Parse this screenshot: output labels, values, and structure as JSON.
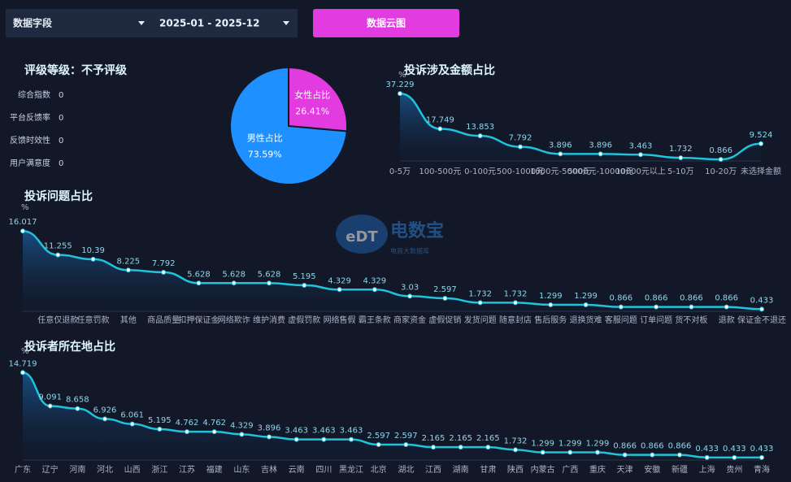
{
  "controls": {
    "field_select": "数据字段",
    "date_range": "2025-01 - 2025-12",
    "button": "数据云图"
  },
  "rating": {
    "title": "评级等级：不予评级",
    "items": [
      {
        "label": "综合指数",
        "value": 0
      },
      {
        "label": "平台反馈率",
        "value": 0
      },
      {
        "label": "反馈时效性",
        "value": 0
      },
      {
        "label": "用户满意度",
        "value": 0
      }
    ]
  },
  "watermark": {
    "name": "电数宝",
    "subtitle": "电商大数据库"
  },
  "chart_data": [
    {
      "type": "pie",
      "categories": [
        "男性占比",
        "女性占比"
      ],
      "values": [
        73.59,
        26.41
      ],
      "value_labels": [
        "73.59%",
        "26.41%"
      ],
      "colors": [
        "#1e90ff",
        "#e23be0"
      ]
    },
    {
      "type": "line",
      "title": "投诉涉及金额占比",
      "y_label": "%",
      "color": "#1fc3dc",
      "categories": [
        "0-5万",
        "100-500元",
        "0-100元",
        "500-1000元",
        "1000元-5000元",
        "5000元-10000元",
        "10000元以上",
        "5-10万",
        "10-20万",
        "未选择金额"
      ],
      "values": [
        37.229,
        17.749,
        13.853,
        7.792,
        3.896,
        3.896,
        3.463,
        1.732,
        0.866,
        9.524
      ],
      "ylim": [
        0,
        40
      ]
    },
    {
      "type": "line",
      "title": "投诉问题占比",
      "y_label": "%",
      "color": "#1fc3dc",
      "categories": [
        null,
        "任意仅退款",
        "任意罚款",
        "其他",
        "商品质量",
        "扣押保证金",
        "网络欺诈",
        "维护消费",
        "虚假罚款",
        "网络售假",
        "霸王条款",
        "商家资金",
        "虚假促销",
        "发货问题",
        "随意封店",
        "售后服务",
        "退换货难",
        "客服问题",
        "订单问题",
        "货不对板",
        "退款",
        "保证金不退还"
      ],
      "values": [
        16.017,
        11.255,
        10.39,
        8.225,
        7.792,
        5.628,
        5.628,
        5.628,
        5.195,
        4.329,
        4.329,
        3.03,
        2.597,
        1.732,
        1.732,
        1.299,
        1.299,
        0.866,
        0.866,
        0.866,
        0.866,
        0.433
      ],
      "ylim": [
        0,
        18
      ]
    },
    {
      "type": "line",
      "title": "投诉者所在地占比",
      "y_label": "%",
      "color": "#1fc3dc",
      "categories": [
        "广东",
        "辽宁",
        "河南",
        "河北",
        "山西",
        "浙江",
        "江苏",
        "福建",
        "山东",
        "吉林",
        "云南",
        "四川",
        "黑龙江",
        "北京",
        "湖北",
        "江西",
        "湖南",
        "甘肃",
        "陕西",
        "内蒙古",
        "广西",
        "重庆",
        "天津",
        "安徽",
        "新疆",
        "上海",
        "贵州",
        "青海"
      ],
      "values": [
        14.719,
        9.091,
        8.658,
        6.926,
        6.061,
        5.195,
        4.762,
        4.762,
        4.329,
        3.896,
        3.463,
        3.463,
        3.463,
        2.597,
        2.597,
        2.165,
        2.165,
        2.165,
        1.732,
        1.299,
        1.299,
        1.299,
        0.866,
        0.866,
        0.866,
        0.433,
        0.433,
        0.433
      ],
      "ylim": [
        0,
        16
      ]
    }
  ]
}
